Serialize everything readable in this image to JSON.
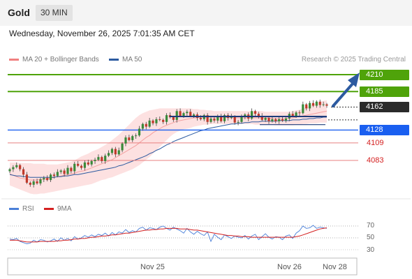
{
  "header": {
    "title": "Gold",
    "timeframe": "30 MIN",
    "timestamp": "Wednesday, November 26, 2025 7:01:35 AM CET"
  },
  "legend": {
    "bb_label": "MA 20 + Bollinger Bands",
    "ma50_label": "MA 50",
    "copyright": "Research © 2025 Trading Central",
    "bb_color": "#f08080",
    "ma50_color": "#2c5aa0"
  },
  "rsi_legend": {
    "rsi_label": "RSI",
    "ma_label": "9MA",
    "rsi_color": "#4a7fd8",
    "ma_color": "#d42020"
  },
  "levels": {
    "r2": "4210",
    "r1": "4185",
    "last": "4162",
    "pivot": "4128",
    "s1": "4109",
    "s2": "4083",
    "resistance_color": "#4fa30a",
    "last_color": "#2a2a2a",
    "pivot_color": "#1a5ff0",
    "support_color": "#d42020"
  },
  "rsi_ticks": [
    "70",
    "50",
    "30"
  ],
  "x_labels": [
    "Nov 25",
    "Nov 26",
    "Nov 28"
  ],
  "chart_data": {
    "type": "candlestick",
    "price_ylim": [
      4040,
      4225
    ],
    "rsi_ylim": [
      15,
      85
    ],
    "horizontal_levels": [
      {
        "value": 4210,
        "kind": "resistance"
      },
      {
        "value": 4185,
        "kind": "resistance"
      },
      {
        "value": 4162,
        "kind": "last"
      },
      {
        "value": 4128,
        "kind": "pivot"
      },
      {
        "value": 4109,
        "kind": "support"
      },
      {
        "value": 4083,
        "kind": "support"
      }
    ],
    "close": [
      4070,
      4073,
      4076,
      4070,
      4062,
      4050,
      4047,
      4052,
      4049,
      4055,
      4057,
      4054,
      4062,
      4060,
      4066,
      4068,
      4063,
      4072,
      4067,
      4078,
      4075,
      4072,
      4080,
      4077,
      4082,
      4084,
      4088,
      4082,
      4090,
      4094,
      4100,
      4092,
      4098,
      4108,
      4117,
      4113,
      4119,
      4120,
      4130,
      4137,
      4133,
      4142,
      4138,
      4144,
      4143,
      4140,
      4150,
      4147,
      4143,
      4156,
      4149,
      4153,
      4155,
      4149,
      4151,
      4146,
      4144,
      4150,
      4140,
      4145,
      4142,
      4148,
      4141,
      4150,
      4146,
      4148,
      4139,
      4140,
      4147,
      4151,
      4145,
      4156,
      4152,
      4149,
      4143,
      4146,
      4141,
      4144,
      4141,
      4144,
      4142,
      4145,
      4152,
      4149,
      4154,
      4153,
      4166,
      4160,
      4168,
      4164,
      4170,
      4165,
      4166,
      4164
    ],
    "ma20": [
      4063,
      4061,
      4059,
      4057,
      4056,
      4055,
      4054,
      4054,
      4054,
      4055,
      4055,
      4056,
      4057,
      4058,
      4059,
      4060,
      4061,
      4062,
      4063,
      4064,
      4066,
      4067,
      4068,
      4070,
      4072,
      4074,
      4076,
      4078,
      4080,
      4082,
      4084,
      4087,
      4090,
      4093,
      4096,
      4099,
      4102,
      4105,
      4109,
      4113,
      4117,
      4120,
      4124,
      4127,
      4130,
      4133,
      4135,
      4137,
      4139,
      4141,
      4142,
      4143,
      4144,
      4145,
      4146,
      4146,
      4147,
      4147,
      4147,
      4147,
      4147,
      4147,
      4147,
      4147,
      4146,
      4146,
      4146,
      4146,
      4146,
      4146,
      4146,
      4146,
      4146,
      4146,
      4146,
      4146,
      4146,
      4145,
      4145,
      4145,
      4145,
      4145,
      4146,
      4146,
      4147,
      4148,
      4149,
      4150,
      4151,
      4152,
      4153,
      4154,
      4155,
      4156
    ],
    "ma50": [
      4062,
      4061,
      4060,
      4060,
      4059,
      4059,
      4058,
      4058,
      4058,
      4058,
      4058,
      4058,
      4058,
      4058,
      4059,
      4059,
      4060,
      4060,
      4061,
      4062,
      4062,
      4063,
      4064,
      4065,
      4066,
      4067,
      4068,
      4069,
      4070,
      4071,
      4072,
      4073,
      4075,
      4076,
      4078,
      4080,
      4082,
      4084,
      4086,
      4088,
      4090,
      4093,
      4095,
      4098,
      4100,
      4103,
      4106,
      4108,
      4111,
      4113,
      4115,
      4117,
      4119,
      4121,
      4123,
      4125,
      4127,
      4128,
      4130,
      4131,
      4132,
      4133,
      4134,
      4135,
      4136,
      4137,
      4137,
      4138,
      4138,
      4139,
      4139,
      4140,
      4140,
      4140,
      4141,
      4141,
      4141,
      4141,
      4141,
      4142,
      4142,
      4142,
      4142,
      4143,
      4143,
      4143,
      4144,
      4144,
      4145,
      4145,
      4146,
      4146,
      4147,
      4147
    ],
    "bb_upper": [
      4080,
      4080,
      4080,
      4079,
      4079,
      4079,
      4079,
      4078,
      4078,
      4078,
      4078,
      4077,
      4077,
      4077,
      4077,
      4078,
      4079,
      4080,
      4081,
      4083,
      4086,
      4089,
      4091,
      4093,
      4096,
      4098,
      4100,
      4103,
      4106,
      4109,
      4113,
      4117,
      4121,
      4126,
      4131,
      4136,
      4141,
      4146,
      4150,
      4153,
      4155,
      4157,
      4158,
      4159,
      4160,
      4160,
      4160,
      4160,
      4160,
      4160,
      4160,
      4160,
      4160,
      4160,
      4159,
      4159,
      4158,
      4158,
      4157,
      4157,
      4156,
      4156,
      4156,
      4156,
      4156,
      4156,
      4156,
      4156,
      4156,
      4156,
      4156,
      4156,
      4156,
      4156,
      4156,
      4155,
      4155,
      4155,
      4155,
      4155,
      4155,
      4155,
      4155,
      4156,
      4157,
      4158,
      4160,
      4162,
      4164,
      4166,
      4168,
      4170,
      4171,
      4172
    ],
    "bb_lower": [
      4046,
      4044,
      4042,
      4040,
      4038,
      4036,
      4034,
      4033,
      4033,
      4034,
      4034,
      4035,
      4036,
      4037,
      4038,
      4039,
      4040,
      4041,
      4042,
      4043,
      4044,
      4045,
      4046,
      4047,
      4048,
      4050,
      4052,
      4054,
      4055,
      4057,
      4058,
      4060,
      4062,
      4064,
      4066,
      4068,
      4070,
      4073,
      4076,
      4080,
      4084,
      4088,
      4093,
      4098,
      4103,
      4108,
      4113,
      4118,
      4122,
      4125,
      4127,
      4129,
      4130,
      4131,
      4133,
      4134,
      4135,
      4136,
      4136,
      4137,
      4137,
      4137,
      4137,
      4137,
      4137,
      4137,
      4137,
      4137,
      4137,
      4137,
      4137,
      4137,
      4136,
      4136,
      4136,
      4136,
      4136,
      4136,
      4135,
      4135,
      4135,
      4135,
      4135,
      4135,
      4136,
      4136,
      4137,
      4137,
      4138,
      4138,
      4138,
      4139,
      4139,
      4139
    ],
    "rsi": [
      48,
      47,
      49,
      44,
      42,
      40,
      41,
      46,
      43,
      47,
      46,
      43,
      45,
      48,
      44,
      50,
      46,
      49,
      45,
      52,
      48,
      50,
      54,
      51,
      55,
      52,
      56,
      54,
      58,
      53,
      59,
      55,
      60,
      58,
      64,
      59,
      62,
      60,
      66,
      68,
      63,
      67,
      66,
      64,
      68,
      70,
      66,
      63,
      68,
      65,
      62,
      58,
      66,
      60,
      56,
      61,
      57,
      54,
      60,
      44,
      56,
      51,
      47,
      55,
      52,
      49,
      53,
      51,
      50,
      54,
      48,
      53,
      56,
      47,
      52,
      57,
      51,
      48,
      52,
      51,
      47,
      53,
      55,
      49,
      58,
      62,
      70,
      66,
      67,
      71,
      66,
      68,
      67,
      66
    ],
    "rsi_ma9": [
      46,
      46,
      46,
      45,
      44,
      43,
      43,
      43,
      43,
      44,
      44,
      44,
      44,
      44,
      45,
      45,
      46,
      46,
      47,
      48,
      48,
      49,
      49,
      50,
      51,
      51,
      52,
      53,
      53,
      54,
      55,
      55,
      56,
      57,
      58,
      58,
      59,
      60,
      61,
      62,
      63,
      63,
      64,
      64,
      65,
      65,
      66,
      66,
      66,
      66,
      65,
      65,
      65,
      64,
      63,
      63,
      62,
      61,
      60,
      59,
      58,
      57,
      56,
      55,
      54,
      54,
      53,
      53,
      52,
      52,
      52,
      51,
      51,
      51,
      51,
      51,
      51,
      51,
      51,
      51,
      51,
      51,
      51,
      51,
      52,
      53,
      55,
      57,
      59,
      61,
      63,
      65,
      66,
      67
    ],
    "markers": {
      "range_top": 4148,
      "range_bottom": 4136,
      "projection_target": 4210
    },
    "x_labels": [
      "Nov 25",
      "Nov 26",
      "Nov 28"
    ]
  }
}
